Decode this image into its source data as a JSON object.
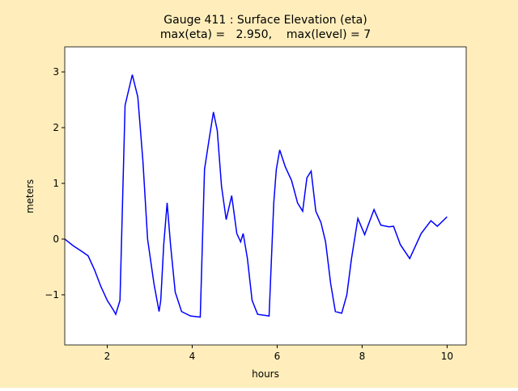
{
  "chart_data": {
    "type": "line",
    "title": "Gauge 411 : Surface Elevation (eta)",
    "subtitle": "max(eta) =   2.950,    max(level) = 7",
    "x_label": "hours",
    "y_label": "meters",
    "x": [
      1.0,
      1.2,
      1.4,
      1.55,
      1.7,
      1.85,
      2.0,
      2.15,
      2.2,
      2.3,
      2.42,
      2.59,
      2.72,
      2.84,
      2.95,
      3.1,
      3.22,
      3.26,
      3.33,
      3.41,
      3.49,
      3.6,
      3.75,
      3.96,
      4.19,
      4.29,
      4.4,
      4.5,
      4.59,
      4.69,
      4.8,
      4.93,
      5.05,
      5.14,
      5.2,
      5.3,
      5.41,
      5.54,
      5.81,
      5.92,
      5.98,
      6.06,
      6.19,
      6.34,
      6.48,
      6.6,
      6.7,
      6.8,
      6.91,
      7.03,
      7.14,
      7.26,
      7.37,
      7.52,
      7.64,
      7.75,
      7.9,
      8.06,
      8.28,
      8.44,
      8.63,
      8.74,
      8.9,
      9.12,
      9.39,
      9.62,
      9.77,
      10.0
    ],
    "series": [
      {
        "name": "eta",
        "color": "#0000ff",
        "values": [
          0.0,
          -0.12,
          -0.22,
          -0.3,
          -0.55,
          -0.85,
          -1.1,
          -1.28,
          -1.35,
          -1.1,
          2.4,
          2.95,
          2.55,
          1.4,
          0.0,
          -0.8,
          -1.3,
          -1.1,
          -0.1,
          0.65,
          -0.1,
          -0.95,
          -1.3,
          -1.38,
          -1.4,
          1.25,
          1.8,
          2.28,
          1.95,
          0.95,
          0.35,
          0.78,
          0.1,
          -0.05,
          0.1,
          -0.35,
          -1.1,
          -1.35,
          -1.38,
          0.65,
          1.25,
          1.6,
          1.3,
          1.05,
          0.65,
          0.5,
          1.1,
          1.22,
          0.5,
          0.3,
          -0.05,
          -0.8,
          -1.3,
          -1.33,
          -1.0,
          -0.35,
          0.37,
          0.08,
          0.53,
          0.25,
          0.22,
          0.23,
          -0.1,
          -0.35,
          0.1,
          0.33,
          0.23,
          0.4
        ]
      }
    ],
    "xlim": [
      1.0,
      10.45
    ],
    "ylim": [
      -1.9,
      3.45
    ],
    "xticks": [
      2,
      4,
      6,
      8,
      10
    ],
    "yticks": [
      {
        "value": -1,
        "label": "−1"
      },
      0,
      1,
      2,
      3
    ],
    "background": "#ffeebb"
  }
}
